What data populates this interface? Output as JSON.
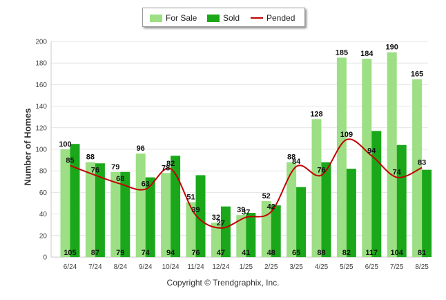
{
  "colors": {
    "for_sale": "#9ddf84",
    "sold": "#1aa81a",
    "pended": "#c00000"
  },
  "legend": {
    "for_sale": "For Sale",
    "sold": "Sold",
    "pended": "Pended"
  },
  "copyright": "Copyright © Trendgraphix, Inc.",
  "chart_data": {
    "type": "bar",
    "ylabel": "Number of Homes",
    "ylim": [
      0,
      200
    ],
    "yticks": [
      0,
      20,
      40,
      60,
      80,
      100,
      120,
      140,
      160,
      180,
      200
    ],
    "categories": [
      "6/24",
      "7/24",
      "8/24",
      "9/24",
      "10/24",
      "11/24",
      "12/24",
      "1/25",
      "2/25",
      "3/25",
      "4/25",
      "5/25",
      "6/25",
      "7/25",
      "8/25"
    ],
    "series": [
      {
        "name": "For Sale",
        "type": "bar",
        "values": [
          100,
          88,
          79,
          96,
          78,
          51,
          32,
          39,
          52,
          88,
          128,
          185,
          184,
          190,
          165
        ]
      },
      {
        "name": "Sold",
        "type": "bar",
        "values": [
          105,
          87,
          79,
          74,
          94,
          76,
          47,
          41,
          48,
          65,
          88,
          82,
          117,
          104,
          81
        ]
      },
      {
        "name": "Pended",
        "type": "line",
        "values": [
          85,
          76,
          68,
          63,
          82,
          39,
          27,
          37,
          42,
          84,
          76,
          109,
          94,
          74,
          83
        ]
      }
    ],
    "grid": true,
    "legend_position": "top"
  }
}
